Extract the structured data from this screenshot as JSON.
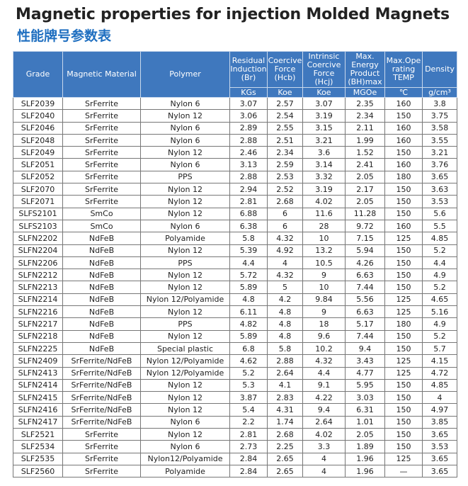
{
  "header": {
    "title": "Magnetic properties for injection Molded Magnets",
    "subtitle": "性能牌号参数表"
  },
  "table": {
    "columns": [
      "Grade",
      "Magnetic Material",
      "Polymer",
      "Residual\nInduction\n(Br)",
      "Coercive\nForce\n(Hcb)",
      "Intrinsic\nCoercive\nForce (Hcj)",
      "Max.\nEnergy\nProduct\n(BH)max",
      "Max.Ope\nrating\nTEMP",
      "Density"
    ],
    "units": [
      "KGs",
      "Koe",
      "Koe",
      "MGOe",
      "℃",
      "g/cm³"
    ],
    "rows": [
      [
        "SLF2039",
        "SrFerrite",
        "Nylon 6",
        "3.07",
        "2.57",
        "3.07",
        "2.35",
        "160",
        "3.8"
      ],
      [
        "SLF2040",
        "SrFerrite",
        "Nylon 12",
        "3.06",
        "2.54",
        "3.19",
        "2.34",
        "150",
        "3.75"
      ],
      [
        "SLF2046",
        "SrFerrite",
        "Nylon 6",
        "2.89",
        "2.55",
        "3.15",
        "2.11",
        "160",
        "3.58"
      ],
      [
        "SLF2048",
        "SrFerrite",
        "Nylon 6",
        "2.88",
        "2.51",
        "3.21",
        "1.99",
        "160",
        "3.55"
      ],
      [
        "SLF2049",
        "SrFerrite",
        "Nylon 12",
        "2.46",
        "2.34",
        "3.6",
        "1.52",
        "150",
        "3.21"
      ],
      [
        "SLF2051",
        "SrFerrite",
        "Nylon 6",
        "3.13",
        "2.59",
        "3.14",
        "2.41",
        "160",
        "3.76"
      ],
      [
        "SLF2052",
        "SrFerrite",
        "PPS",
        "2.88",
        "2.53",
        "3.32",
        "2.05",
        "180",
        "3.65"
      ],
      [
        "SLF2070",
        "SrFerrite",
        "Nylon 12",
        "2.94",
        "2.52",
        "3.19",
        "2.17",
        "150",
        "3.63"
      ],
      [
        "SLF2071",
        "SrFerrite",
        "Nylon 12",
        "2.81",
        "2.68",
        "4.02",
        "2.05",
        "150",
        "3.53"
      ],
      [
        "SLFS2101",
        "SmCo",
        "Nylon 12",
        "6.88",
        "6",
        "11.6",
        "11.28",
        "150",
        "5.6"
      ],
      [
        "SLFS2103",
        "SmCo",
        "Nylon 6",
        "6.38",
        "6",
        "28",
        "9.72",
        "160",
        "5.5"
      ],
      [
        "SLFN2202",
        "NdFeB",
        "Polyamide",
        "5.8",
        "4.32",
        "10",
        "7.15",
        "125",
        "4.85"
      ],
      [
        "SLFN2204",
        "NdFeB",
        "Nylon 12",
        "5.39",
        "4.92",
        "13.2",
        "5.94",
        "150",
        "5.2"
      ],
      [
        "SLFN2206",
        "NdFeB",
        "PPS",
        "4.4",
        "4",
        "10.5",
        "4.26",
        "150",
        "4.4"
      ],
      [
        "SLFN2212",
        "NdFeB",
        "Nylon 12",
        "5.72",
        "4.32",
        "9",
        "6.63",
        "150",
        "4.9"
      ],
      [
        "SLFN2213",
        "NdFeB",
        "Nylon 12",
        "5.89",
        "5",
        "10",
        "7.44",
        "150",
        "5.2"
      ],
      [
        "SLFN2214",
        "NdFeB",
        "Nylon 12/Polyamide",
        "4.8",
        "4.2",
        "9.84",
        "5.56",
        "125",
        "4.65"
      ],
      [
        "SLFN2216",
        "NdFeB",
        "Nylon 12",
        "6.11",
        "4.8",
        "9",
        "6.63",
        "125",
        "5.16"
      ],
      [
        "SLFN2217",
        "NdFeB",
        "PPS",
        "4.82",
        "4.8",
        "18",
        "5.17",
        "180",
        "4.9"
      ],
      [
        "SLFN2218",
        "NdFeB",
        "Nylon 12",
        "5.89",
        "4.8",
        "9.6",
        "7.44",
        "150",
        "5.2"
      ],
      [
        "SLFN2225",
        "NdFeB",
        "Special plastic",
        "6.8",
        "5.8",
        "10.2",
        "9.4",
        "150",
        "5.7"
      ],
      [
        "SLFN2409",
        "SrFerrite/NdFeB",
        "Nylon 12/Polyamide",
        "4.62",
        "2.88",
        "4.32",
        "3.43",
        "125",
        "4.15"
      ],
      [
        "SLFN2413",
        "SrFerrite/NdFeB",
        "Nylon 12/Polyamide",
        "5.2",
        "2.64",
        "4.4",
        "4.77",
        "125",
        "4.72"
      ],
      [
        "SLFN2414",
        "SrFerrite/NdFeB",
        "Nylon 12",
        "5.3",
        "4.1",
        "9.1",
        "5.95",
        "150",
        "4.85"
      ],
      [
        "SLFN2415",
        "SrFerrite/NdFeB",
        "Nylon 12",
        "3.87",
        "2.83",
        "4.22",
        "3.03",
        "150",
        "4"
      ],
      [
        "SLFN2416",
        "SrFerrite/NdFeB",
        "Nylon 12",
        "5.4",
        "4.31",
        "9.4",
        "6.31",
        "150",
        "4.97"
      ],
      [
        "SLFN2417",
        "SrFerrite/NdFeB",
        "Nylon 6",
        "2.2",
        "1.74",
        "2.64",
        "1.01",
        "150",
        "3.85"
      ],
      [
        "SLF2521",
        "SrFerrite",
        "Nylon 12",
        "2.81",
        "2.68",
        "4.02",
        "2.05",
        "150",
        "3.65"
      ],
      [
        "SLF2534",
        "SrFerrite",
        "Nylon 6",
        "2.73",
        "2.25",
        "3.3",
        "1.89",
        "150",
        "3.53"
      ],
      [
        "SLF2535",
        "SrFerrite",
        "Nylon12/Polyamide",
        "2.84",
        "2.65",
        "4",
        "1.96",
        "125",
        "3.65"
      ],
      [
        "SLF2560",
        "SrFerrite",
        "Polyamide",
        "2.84",
        "2.65",
        "4",
        "1.96",
        "—",
        "3.65"
      ]
    ]
  }
}
